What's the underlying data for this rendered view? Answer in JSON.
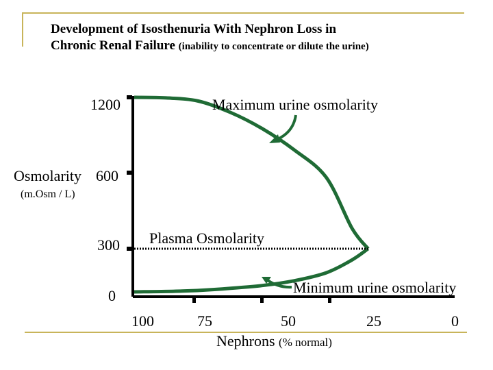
{
  "title": {
    "line1": "Development of Isosthenuria With Nephron Loss in",
    "line2_main": "Chronic Renal Failure",
    "line2_sub": "(inability to concentrate or dilute the urine)"
  },
  "colors": {
    "curve": "#1f6b35",
    "frame": "#c8b45a",
    "axis": "#000000"
  },
  "chart_data": {
    "type": "line",
    "title": "Development of Isosthenuria With Nephron Loss in Chronic Renal Failure (inability to concentrate or dilute the urine)",
    "ylabel": "Osmolarity",
    "ylabel_unit": "(m.Osm / L)",
    "xlabel_main": "Nephrons",
    "xlabel_unit": "(% normal)",
    "x_ticks": [
      "100",
      "75",
      "50",
      "25",
      "0"
    ],
    "y_ticks": [
      "1200",
      "600",
      "300",
      "0"
    ],
    "series": [
      {
        "name": "Maximum urine osmolarity",
        "style": "solid",
        "x": [
          100,
          90,
          80,
          70,
          60,
          50,
          40,
          32,
          27
        ],
        "y": [
          1200,
          1195,
          1170,
          1080,
          950,
          780,
          580,
          380,
          300
        ]
      },
      {
        "name": "Minimum urine osmolarity",
        "style": "solid",
        "x": [
          100,
          85,
          75,
          60,
          50,
          40,
          32,
          27
        ],
        "y": [
          30,
          35,
          45,
          70,
          100,
          150,
          230,
          300
        ]
      },
      {
        "name": "Plasma Osmolarity",
        "style": "dotted",
        "x": [
          100,
          27
        ],
        "y": [
          300,
          300
        ]
      }
    ],
    "annotations": [
      "Maximum urine osmolarity",
      "Plasma Osmolarity",
      "Minimum urine osmolarity"
    ]
  }
}
